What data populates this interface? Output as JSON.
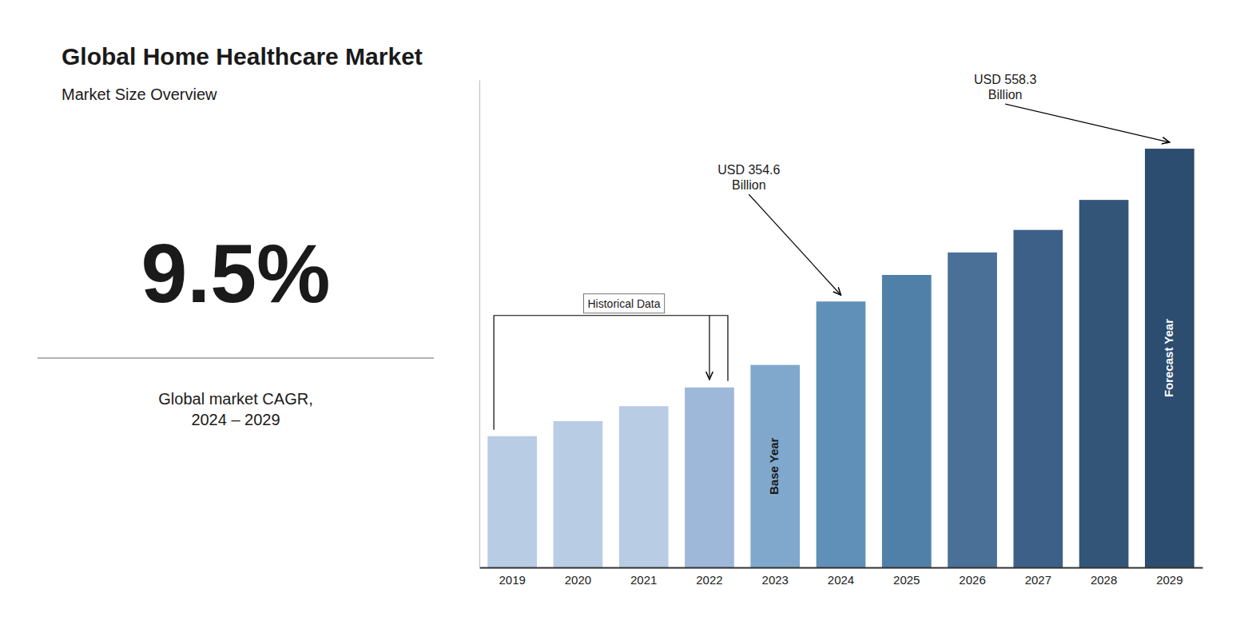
{
  "chart_data": {
    "type": "bar",
    "title": "Global Home Healthcare Market",
    "subtitle": "Market Size Overview",
    "categories": [
      "2019",
      "2020",
      "2021",
      "2022",
      "2023",
      "2024",
      "2025",
      "2026",
      "2027",
      "2028",
      "2029"
    ],
    "values": [
      175,
      195,
      215,
      240,
      270,
      354.6,
      390,
      420,
      450,
      490,
      558.3
    ],
    "colors": [
      "#b8cce4",
      "#b8cce4",
      "#b8cce4",
      "#9db8d9",
      "#7fa8cc",
      "#6090b8",
      "#5080a8",
      "#4a7098",
      "#3d6088",
      "#335578",
      "#2d4d70"
    ],
    "ylim": [
      0,
      650
    ],
    "tick_labels": "x",
    "grid": false,
    "annotations": [
      {
        "text": "9.5%"
      },
      {
        "text": "Global market CAGR,\n2024 – 2029"
      },
      {
        "text": "Base Year",
        "category": "2023"
      },
      {
        "text": "Forecast Year",
        "category": "2029"
      },
      {
        "text": "Historical Data",
        "categories": [
          "2019",
          "2022"
        ]
      },
      {
        "text": "USD 354.6\nBillion",
        "category": "2024"
      },
      {
        "text": "USD 558.3\nBillion",
        "category": "2029"
      }
    ]
  }
}
